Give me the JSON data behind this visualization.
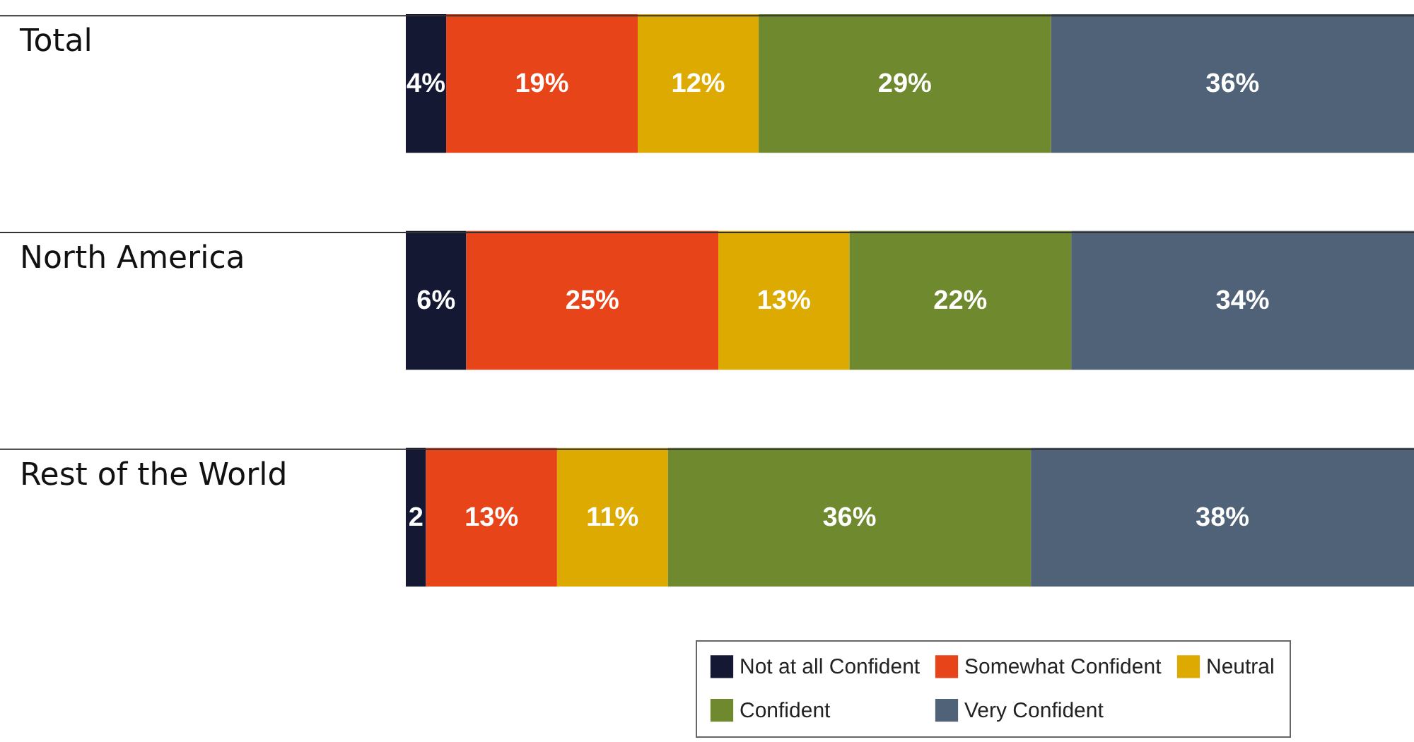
{
  "chart_data": {
    "type": "bar",
    "orientation": "horizontal",
    "stacked": true,
    "legend": "bottom right",
    "categories": [
      "Total",
      "North America",
      "Rest of the World"
    ],
    "series": [
      {
        "name": "Not at all Confident",
        "color": "#151833",
        "values": [
          4,
          6,
          2
        ],
        "value_labels": [
          "4%",
          "6%",
          "2"
        ]
      },
      {
        "name": "Somewhat Confident",
        "color": "#e8441a",
        "values": [
          19,
          25,
          13
        ],
        "value_labels": [
          "19%",
          "25%",
          "13%"
        ]
      },
      {
        "name": "Neutral",
        "color": "#dcaa00",
        "values": [
          12,
          13,
          11
        ],
        "value_labels": [
          "12%",
          "13%",
          "11%"
        ]
      },
      {
        "name": "Confident",
        "color": "#6f8a2e",
        "values": [
          29,
          22,
          36
        ],
        "value_labels": [
          "29%",
          "22%",
          "36%"
        ]
      },
      {
        "name": "Very Confident",
        "color": "#4f6278",
        "values": [
          36,
          34,
          38
        ],
        "value_labels": [
          "36%",
          "34%",
          "38%"
        ]
      }
    ]
  }
}
